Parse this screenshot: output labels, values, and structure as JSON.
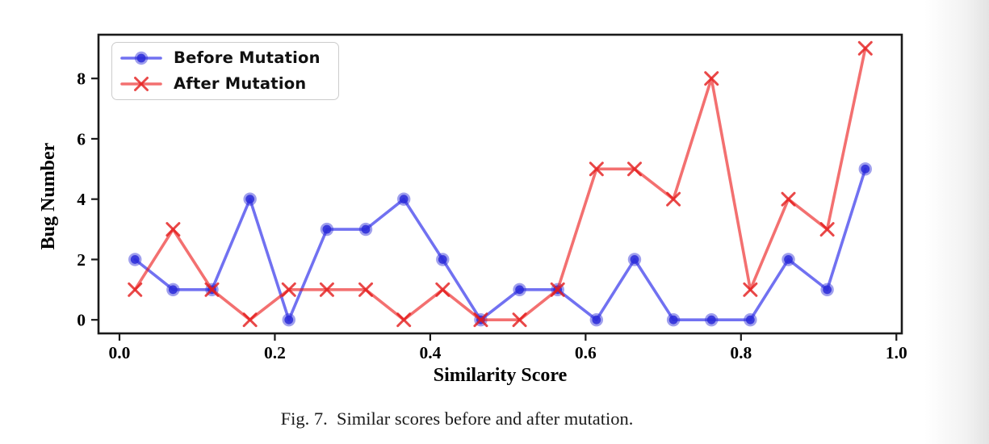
{
  "caption": {
    "text": "Fig. 7.  Similar scores before and after mutation."
  },
  "chart_data": {
    "type": "line",
    "title": "",
    "xlabel": "Similarity Score",
    "ylabel": "Bug Number",
    "x": [
      0.02,
      0.069,
      0.119,
      0.168,
      0.218,
      0.267,
      0.317,
      0.366,
      0.416,
      0.465,
      0.515,
      0.564,
      0.614,
      0.663,
      0.713,
      0.762,
      0.812,
      0.861,
      0.911,
      0.96
    ],
    "series": [
      {
        "name": "Before Mutation",
        "marker": "circle",
        "color": "#1a1ae8",
        "marker_color": "#2a2ad8",
        "line_opacity": 0.62,
        "values": [
          2,
          1,
          1,
          4,
          0,
          3,
          3,
          4,
          2,
          0,
          1,
          1,
          0,
          2,
          0,
          0,
          0,
          2,
          1,
          5
        ]
      },
      {
        "name": "After Mutation",
        "marker": "x",
        "color": "#eb1818",
        "marker_color": "#e41a1a",
        "line_opacity": 0.62,
        "values": [
          1,
          3,
          1,
          0,
          1,
          1,
          1,
          0,
          1,
          0,
          0,
          1,
          5,
          5,
          4,
          8,
          1,
          4,
          3,
          9
        ]
      }
    ],
    "xticks": [
      {
        "v": 0.0,
        "label": "0.0"
      },
      {
        "v": 0.2,
        "label": "0.2"
      },
      {
        "v": 0.4,
        "label": "0.4"
      },
      {
        "v": 0.6,
        "label": "0.6"
      },
      {
        "v": 0.8,
        "label": "0.8"
      },
      {
        "v": 1.0,
        "label": "1.0"
      }
    ],
    "yticks": [
      {
        "v": 0,
        "label": "0"
      },
      {
        "v": 2,
        "label": "2"
      },
      {
        "v": 4,
        "label": "4"
      },
      {
        "v": 6,
        "label": "6"
      },
      {
        "v": 8,
        "label": "8"
      }
    ],
    "xlim": [
      -0.027,
      1.007
    ],
    "ylim": [
      -0.45,
      9.45
    ],
    "grid": false,
    "legend_position": "upper-left",
    "axis_color": "#1a1a1a"
  }
}
